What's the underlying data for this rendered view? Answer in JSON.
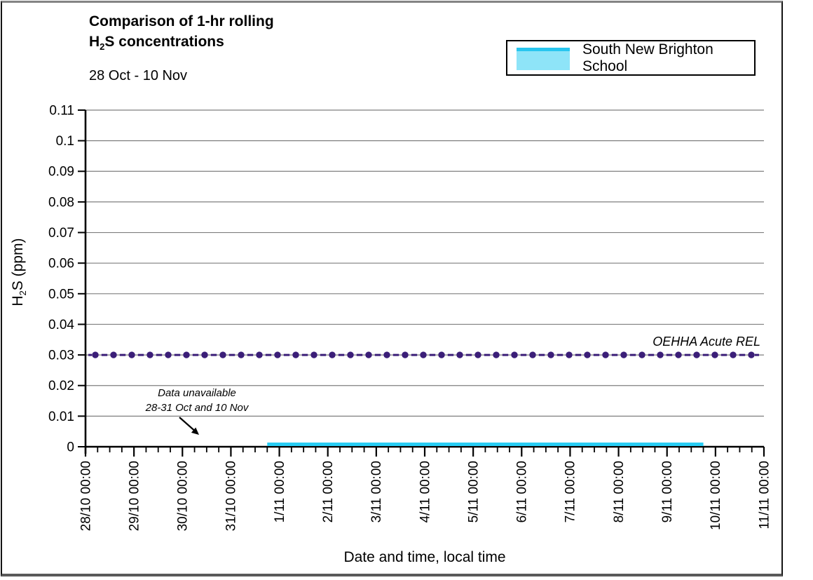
{
  "chart": {
    "title_line1": "Comparison of 1-hr rolling",
    "title2_pre": "H",
    "title2_sub": "2",
    "title2_post": "S concentrations",
    "subtitle": "28 Oct - 10 Nov",
    "legend": {
      "label": "South New Brighton School",
      "swatch_fill": "#8EE4F8",
      "swatch_top_color": "#28C6EF"
    },
    "ylabel_pre": "H",
    "ylabel_sub": "2",
    "ylabel_post": "S (ppm)",
    "xlabel": "Date and time, local time",
    "ref_label": "OEHHA Acute REL",
    "annotation_line1": "Data unavailable",
    "annotation_line2": "28-31 Oct and 10 Nov"
  },
  "chart_data": {
    "type": "line",
    "title": "Comparison of 1-hr rolling H2S concentrations",
    "subtitle": "28 Oct - 10 Nov",
    "xlabel": "Date and time, local time",
    "ylabel": "H2S (ppm)",
    "ylim": [
      0,
      0.11
    ],
    "ytick_step": 0.01,
    "ytick_labels": [
      "0",
      "0.01",
      "0.02",
      "0.03",
      "0.04",
      "0.05",
      "0.06",
      "0.07",
      "0.08",
      "0.09",
      "0.1",
      "0.11"
    ],
    "xtick_labels": [
      "28/10 00:00",
      "29/10 00:00",
      "30/10 00:00",
      "31/10 00:00",
      "1/11 00:00",
      "2/11 00:00",
      "3/11 00:00",
      "4/11 00:00",
      "5/11 00:00",
      "6/11 00:00",
      "7/11 00:00",
      "8/11 00:00",
      "9/11 00:00",
      "10/11 00:00",
      "11/11 00:00"
    ],
    "x_minor_ticks_per_day": 4,
    "grid": "horizontal",
    "gridline_color": "#7F7F7F",
    "axis_color": "#000000",
    "legend_position": "top-right",
    "series": [
      {
        "name": "South New Brighton School",
        "color": "#29CDF4",
        "value_ppm": 0.0,
        "start_day_index": 3.75,
        "end_day_index": 12.75,
        "note": "flat line at ~0 ppm from ~31/10 18:00 to ~9/11 18:00"
      }
    ],
    "reference_line": {
      "label": "OEHHA Acute REL",
      "value": 0.03,
      "color": "#3B1E78",
      "style": "dashed with round markers"
    },
    "annotation": {
      "text": [
        "Data unavailable",
        "28-31 Oct and 10 Nov"
      ],
      "arrow": true,
      "arrow_points_to": "x-axis gap before 1/11"
    }
  }
}
